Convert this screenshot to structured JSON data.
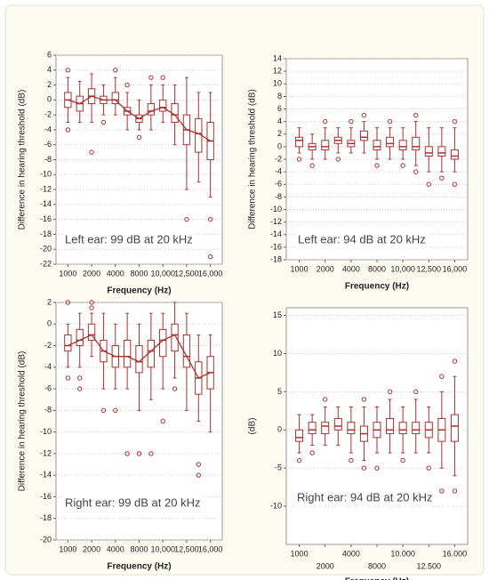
{
  "chart_data": [
    {
      "type": "box",
      "annotation": "Left ear: 99 dB at 20 kHz",
      "xlabel": "Frequency (Hz)",
      "ylabel": "Difference in hearing threshold  (dB)",
      "color": "#a83232",
      "grid": true,
      "median_line": true,
      "stagger_labels": false,
      "categories": [
        "1000",
        null,
        "2000",
        null,
        "4000",
        null,
        "8000",
        null,
        "10,000",
        null,
        "12,500",
        null,
        "16,000"
      ],
      "ylim": [
        -22,
        6
      ],
      "yticks": [
        -22,
        -20,
        -18,
        -16,
        -14,
        -12,
        -10,
        -8,
        -6,
        -4,
        -2,
        0,
        2,
        4,
        6
      ],
      "boxes": [
        {
          "min": -3,
          "q1": -1,
          "median": 0,
          "q3": 1,
          "max": 3,
          "outliers": [
            4,
            -4
          ]
        },
        {
          "min": -3,
          "q1": -1.5,
          "median": -0.5,
          "q3": 0.5,
          "max": 2.5,
          "outliers": []
        },
        {
          "min": -3,
          "q1": -0.5,
          "median": 0.5,
          "q3": 1.5,
          "max": 3.5,
          "outliers": [
            -7
          ]
        },
        {
          "min": -2,
          "q1": -0.5,
          "median": 0,
          "q3": 0.5,
          "max": 2,
          "outliers": [
            -3
          ]
        },
        {
          "min": -2,
          "q1": -0.5,
          "median": 0,
          "q3": 1,
          "max": 3,
          "outliers": [
            4
          ]
        },
        {
          "min": -4,
          "q1": -2,
          "median": -1.5,
          "q3": -1,
          "max": 1,
          "outliers": [
            2
          ]
        },
        {
          "min": -4,
          "q1": -3,
          "median": -2.5,
          "q3": -2,
          "max": 0,
          "outliers": [
            -5
          ]
        },
        {
          "min": -4,
          "q1": -2,
          "median": -1.5,
          "q3": -0.5,
          "max": 2,
          "outliers": [
            3
          ]
        },
        {
          "min": -3,
          "q1": -1.5,
          "median": -1,
          "q3": 0,
          "max": 2,
          "outliers": [
            3
          ]
        },
        {
          "min": -6,
          "q1": -3,
          "median": -2,
          "q3": -0.5,
          "max": 2,
          "outliers": []
        },
        {
          "min": -12,
          "q1": -6,
          "median": -4,
          "q3": -2,
          "max": 3,
          "outliers": [
            -16
          ]
        },
        {
          "min": -11,
          "q1": -7,
          "median": -4.5,
          "q3": -2.5,
          "max": 1,
          "outliers": []
        },
        {
          "min": -13,
          "q1": -8,
          "median": -5.5,
          "q3": -3,
          "max": 1,
          "outliers": [
            -16,
            -21
          ]
        }
      ]
    },
    {
      "type": "box",
      "annotation": "Left ear: 94 dB at 20 kHz",
      "xlabel": "Frequency (Hz)",
      "ylabel": "Difference in hearing threshold  (dB)",
      "color": "#a83232",
      "grid": true,
      "median_line": false,
      "stagger_labels": false,
      "categories": [
        "1000",
        null,
        "2000",
        null,
        "4000",
        null,
        "8000",
        null,
        "10,000",
        null,
        "12,500",
        null,
        "16,000"
      ],
      "ylim": [
        -18,
        14
      ],
      "yticks": [
        -18,
        -16,
        -14,
        -12,
        -10,
        -8,
        -6,
        -4,
        -2,
        0,
        2,
        4,
        6,
        8,
        10,
        12,
        14
      ],
      "boxes": [
        {
          "min": -1,
          "q1": 0,
          "median": 1,
          "q3": 1.5,
          "max": 3,
          "outliers": [
            -2
          ]
        },
        {
          "min": -2,
          "q1": -0.5,
          "median": 0,
          "q3": 0.5,
          "max": 2,
          "outliers": [
            -3
          ]
        },
        {
          "min": -2,
          "q1": -0.5,
          "median": 0,
          "q3": 1,
          "max": 3,
          "outliers": [
            4
          ]
        },
        {
          "min": -1,
          "q1": 0.5,
          "median": 1,
          "q3": 1.5,
          "max": 3,
          "outliers": [
            -2
          ]
        },
        {
          "min": -1,
          "q1": 0,
          "median": 0.5,
          "q3": 1,
          "max": 3,
          "outliers": [
            4
          ]
        },
        {
          "min": -1,
          "q1": 1,
          "median": 1.5,
          "q3": 2.5,
          "max": 4,
          "outliers": [
            5
          ]
        },
        {
          "min": -2,
          "q1": -0.5,
          "median": 0,
          "q3": 1,
          "max": 3,
          "outliers": [
            -3
          ]
        },
        {
          "min": -2,
          "q1": 0,
          "median": 0.5,
          "q3": 1.5,
          "max": 3,
          "outliers": [
            4
          ]
        },
        {
          "min": -2,
          "q1": -0.5,
          "median": 0,
          "q3": 1,
          "max": 3,
          "outliers": [
            -3
          ]
        },
        {
          "min": -3,
          "q1": -0.5,
          "median": 0,
          "q3": 1.5,
          "max": 4,
          "outliers": [
            5,
            -4
          ]
        },
        {
          "min": -4,
          "q1": -1.5,
          "median": -1,
          "q3": 0,
          "max": 3,
          "outliers": [
            -6
          ]
        },
        {
          "min": -4,
          "q1": -1.5,
          "median": -1,
          "q3": 0,
          "max": 3,
          "outliers": [
            -5
          ]
        },
        {
          "min": -4,
          "q1": -2,
          "median": -1.5,
          "q3": -0.5,
          "max": 3,
          "outliers": [
            -6,
            4
          ]
        }
      ]
    },
    {
      "type": "box",
      "annotation": "Right ear: 99 dB at 20 kHz",
      "xlabel": "Frequency (Hz)",
      "ylabel": "Difference in hearing threshold  (dB)",
      "color": "#a83232",
      "grid": true,
      "median_line": true,
      "stagger_labels": false,
      "categories": [
        "1000",
        null,
        "2000",
        null,
        "4000",
        null,
        "8000",
        null,
        "10,000",
        null,
        "12,500",
        null,
        "16,000"
      ],
      "ylim": [
        -20,
        2
      ],
      "yticks": [
        -20,
        -18,
        -16,
        -14,
        -12,
        -10,
        -8,
        -6,
        -4,
        -2,
        0,
        2
      ],
      "boxes": [
        {
          "min": -4,
          "q1": -2.5,
          "median": -2,
          "q3": -1,
          "max": 0,
          "outliers": [
            2,
            -5
          ]
        },
        {
          "min": -4,
          "q1": -2,
          "median": -1.5,
          "q3": -0.5,
          "max": 1,
          "outliers": [
            -5,
            -6
          ]
        },
        {
          "min": -3,
          "q1": -1.5,
          "median": -1,
          "q3": 0,
          "max": 1,
          "outliers": [
            2,
            1.5
          ]
        },
        {
          "min": -6,
          "q1": -3.5,
          "median": -2.5,
          "q3": -1.5,
          "max": 1,
          "outliers": [
            -8
          ]
        },
        {
          "min": -6,
          "q1": -4,
          "median": -3,
          "q3": -2,
          "max": 0,
          "outliers": [
            -8
          ]
        },
        {
          "min": -6,
          "q1": -4,
          "median": -3,
          "q3": -1.5,
          "max": 1,
          "outliers": [
            -12
          ]
        },
        {
          "min": -8,
          "q1": -4.5,
          "median": -3.5,
          "q3": -2,
          "max": 0,
          "outliers": [
            -12
          ]
        },
        {
          "min": -7,
          "q1": -4,
          "median": -2.5,
          "q3": -1.5,
          "max": 1,
          "outliers": [
            -12
          ]
        },
        {
          "min": -6,
          "q1": -3,
          "median": -1.5,
          "q3": -0.5,
          "max": 1,
          "outliers": [
            -9
          ]
        },
        {
          "min": -5,
          "q1": -2.5,
          "median": -1,
          "q3": 0,
          "max": 2,
          "outliers": [
            -6
          ]
        },
        {
          "min": -8,
          "q1": -4,
          "median": -3,
          "q3": -1,
          "max": 1,
          "outliers": []
        },
        {
          "min": -9,
          "q1": -6.5,
          "median": -5,
          "q3": -3.5,
          "max": -1,
          "outliers": [
            -13,
            -14
          ]
        },
        {
          "min": -10,
          "q1": -6,
          "median": -4.5,
          "q3": -3,
          "max": -1,
          "outliers": []
        }
      ]
    },
    {
      "type": "box",
      "annotation": "Right ear: 94 dB at 20 kHz",
      "xlabel": "Frequency (Hz)",
      "ylabel": "(dB)",
      "color": "#a83232",
      "grid": true,
      "median_line": false,
      "stagger_labels": true,
      "categories": [
        "1000",
        null,
        "2000",
        null,
        "4000",
        null,
        "8000",
        null,
        "10.000",
        null,
        "12.500",
        null,
        "16.000"
      ],
      "ylim": [
        -15,
        16
      ],
      "yticks": [
        -10,
        -5,
        0,
        5,
        10,
        15
      ],
      "boxes": [
        {
          "min": -3,
          "q1": -1.5,
          "median": -1,
          "q3": 0,
          "max": 2,
          "outliers": [
            -4
          ]
        },
        {
          "min": -2,
          "q1": -0.5,
          "median": 0,
          "q3": 1,
          "max": 2,
          "outliers": [
            -3
          ]
        },
        {
          "min": -2,
          "q1": -0.5,
          "median": 0.5,
          "q3": 1,
          "max": 3,
          "outliers": [
            4
          ]
        },
        {
          "min": -2,
          "q1": 0,
          "median": 0.5,
          "q3": 1.5,
          "max": 3,
          "outliers": []
        },
        {
          "min": -3,
          "q1": -0.5,
          "median": 0,
          "q3": 1,
          "max": 3,
          "outliers": [
            -4
          ]
        },
        {
          "min": -4,
          "q1": -1.5,
          "median": -0.5,
          "q3": 0.5,
          "max": 3,
          "outliers": [
            -5,
            4
          ]
        },
        {
          "min": -3,
          "q1": -1,
          "median": 0,
          "q3": 1,
          "max": 3,
          "outliers": [
            -5
          ]
        },
        {
          "min": -3,
          "q1": -0.5,
          "median": 0,
          "q3": 1.5,
          "max": 4,
          "outliers": [
            5
          ]
        },
        {
          "min": -3,
          "q1": -0.5,
          "median": 0,
          "q3": 1,
          "max": 3,
          "outliers": [
            -4
          ]
        },
        {
          "min": -3,
          "q1": -0.5,
          "median": 0,
          "q3": 1,
          "max": 4,
          "outliers": [
            5
          ]
        },
        {
          "min": -3,
          "q1": -1,
          "median": 0,
          "q3": 1,
          "max": 3,
          "outliers": [
            -5
          ]
        },
        {
          "min": -5,
          "q1": -1.5,
          "median": 0,
          "q3": 1.5,
          "max": 5,
          "outliers": [
            7,
            -8
          ]
        },
        {
          "min": -6,
          "q1": -1.5,
          "median": 0.5,
          "q3": 2,
          "max": 7,
          "outliers": [
            9,
            -8
          ]
        }
      ]
    }
  ]
}
